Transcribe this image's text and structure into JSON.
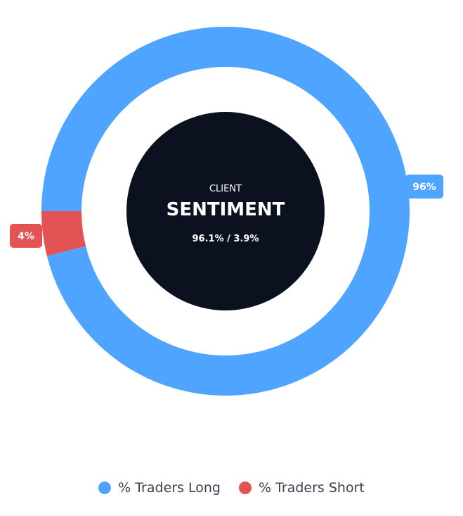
{
  "chart_data": {
    "type": "pie",
    "variant": "donut",
    "categories": [
      "% Traders Long",
      "% Traders Short"
    ],
    "values": [
      96.1,
      3.9
    ],
    "data_labels": [
      "96%",
      "4%"
    ],
    "colors": [
      "#4fa4ff",
      "#e35353"
    ],
    "legend_position": "bottom"
  },
  "center": {
    "label_small": "CLIENT",
    "label_large": "SENTIMENT",
    "ratio": "96.1% / 3.9%",
    "background": "#0c1120"
  },
  "legend": {
    "items": [
      {
        "label": "% Traders Long",
        "color": "#4fa4ff"
      },
      {
        "label": "% Traders Short",
        "color": "#e35353"
      }
    ]
  }
}
